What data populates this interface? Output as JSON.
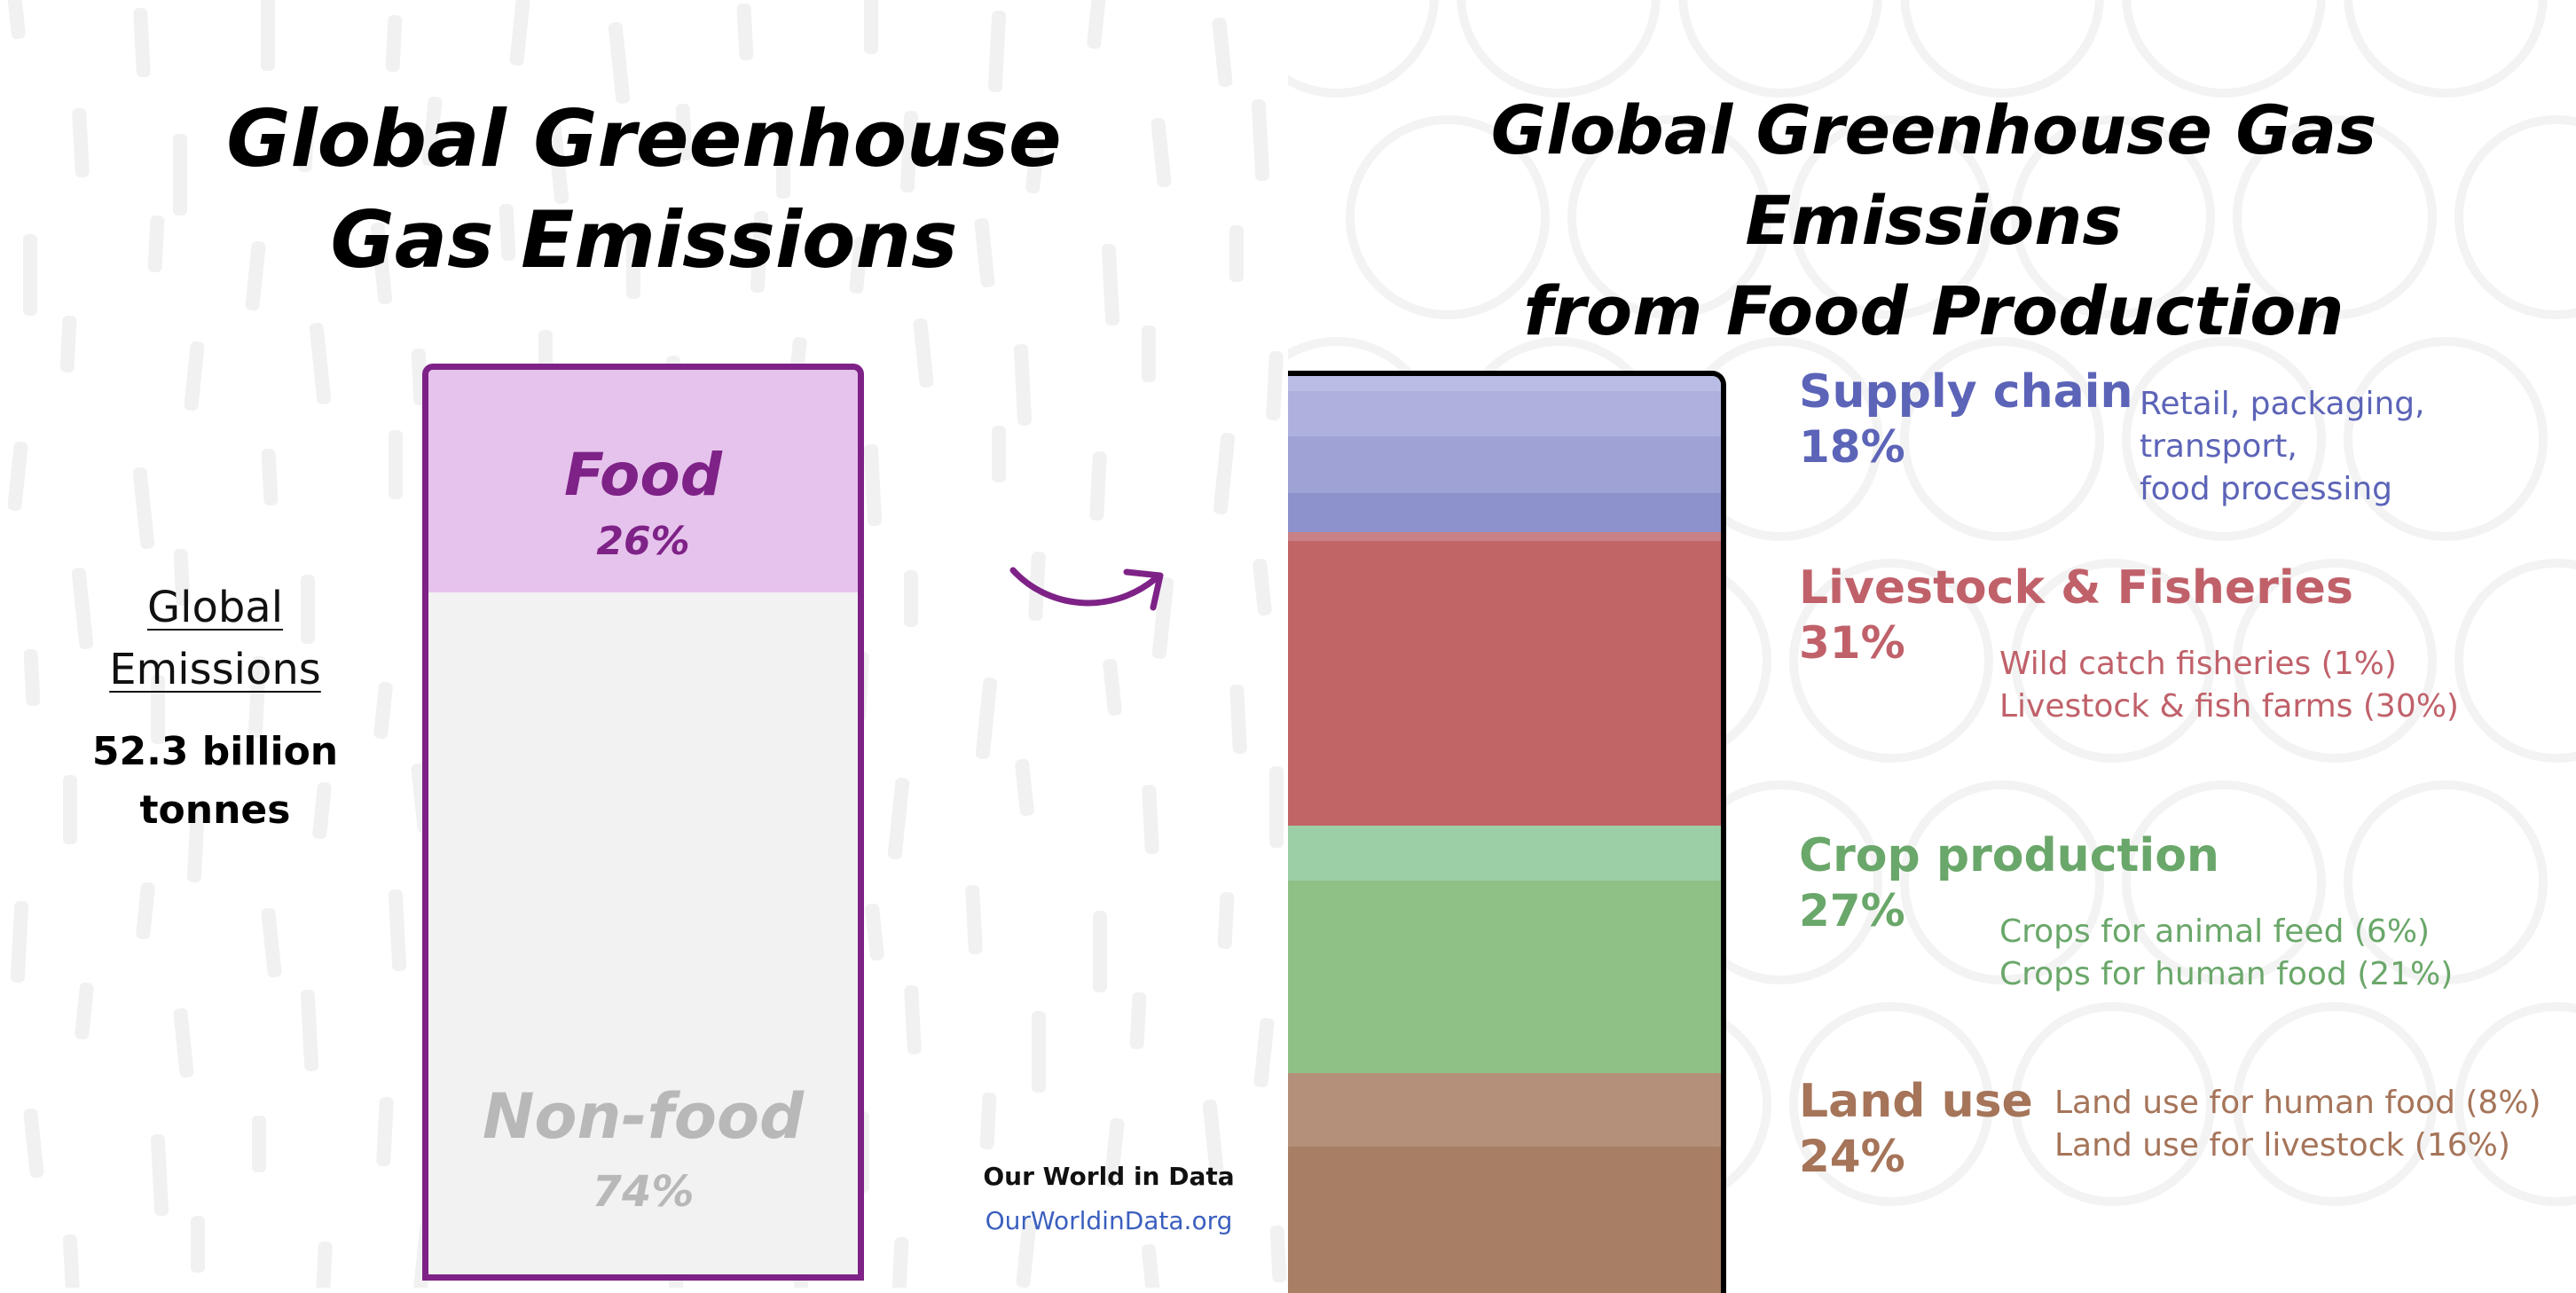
{
  "colors": {
    "accent_purple": "#7e2287",
    "food_fill": "#e6c3ec",
    "nonfood_fill": "#f2f2f2",
    "nonfood_text": "#b8b8b8",
    "supply": "#5c64b8",
    "livestock": "#c0616a",
    "crop": "#6aa76a",
    "land": "#a57459",
    "link": "#3b5fbf"
  },
  "left": {
    "title_line1": "Global Greenhouse",
    "title_line2": "Gas Emissions",
    "global_label_line1": "Global",
    "global_label_line2": "Emissions",
    "global_value_line1": "52.3 billion",
    "global_value_line2": "tonnes",
    "food_label": "Food",
    "food_pct": "26%",
    "nonfood_label": "Non-food",
    "nonfood_pct": "74%"
  },
  "right": {
    "title_line1": "Global Greenhouse Gas Emissions",
    "title_line2": "from Food Production"
  },
  "credit": {
    "name": "Our World in Data",
    "url": "OurWorldinData.org"
  },
  "chart_data": [
    {
      "type": "bar",
      "title": "Global Greenhouse Gas Emissions",
      "total": "52.3 billion tonnes",
      "categories": [
        "Food",
        "Non-food"
      ],
      "values": [
        26,
        74
      ],
      "unit": "%"
    },
    {
      "type": "bar",
      "title": "Global Greenhouse Gas Emissions from Food Production",
      "unit": "%",
      "groups": [
        {
          "name": "Supply chain",
          "pct_label": "18%",
          "value": 18,
          "detail_lines": [
            "Retail, packaging,",
            "transport,",
            "food processing"
          ],
          "bands": [
            {
              "value": 1.6,
              "color": "#b9bde6"
            },
            {
              "value": 5.0,
              "color": "#aeb1de"
            },
            {
              "value": 6.2,
              "color": "#9ea2d4"
            },
            {
              "value": 4.2,
              "color": "#8d92cd"
            },
            {
              "value": 1.0,
              "color": "#c98087"
            }
          ]
        },
        {
          "name": "Livestock & Fisheries",
          "pct_label": "31%",
          "value": 31,
          "detail_lines": [
            "Wild catch fisheries (1%)",
            "Livestock & fish farms (30%)"
          ],
          "bands": [
            {
              "value": 31,
              "color": "#c26567"
            }
          ]
        },
        {
          "name": "Crop production",
          "pct_label": "27%",
          "value": 27,
          "detail_lines": [
            "Crops for animal feed (6%)",
            "Crops for human food (21%)"
          ],
          "bands": [
            {
              "value": 6,
              "color": "#9ccfa6"
            },
            {
              "value": 21,
              "color": "#8fc186"
            }
          ]
        },
        {
          "name": "Land use",
          "pct_label": "24%",
          "value": 24,
          "detail_lines": [
            "Land use for human food (8%)",
            "Land use for livestock (16%)"
          ],
          "bands": [
            {
              "value": 8,
              "color": "#b4907b"
            },
            {
              "value": 16,
              "color": "#a87e65"
            }
          ]
        }
      ]
    }
  ]
}
